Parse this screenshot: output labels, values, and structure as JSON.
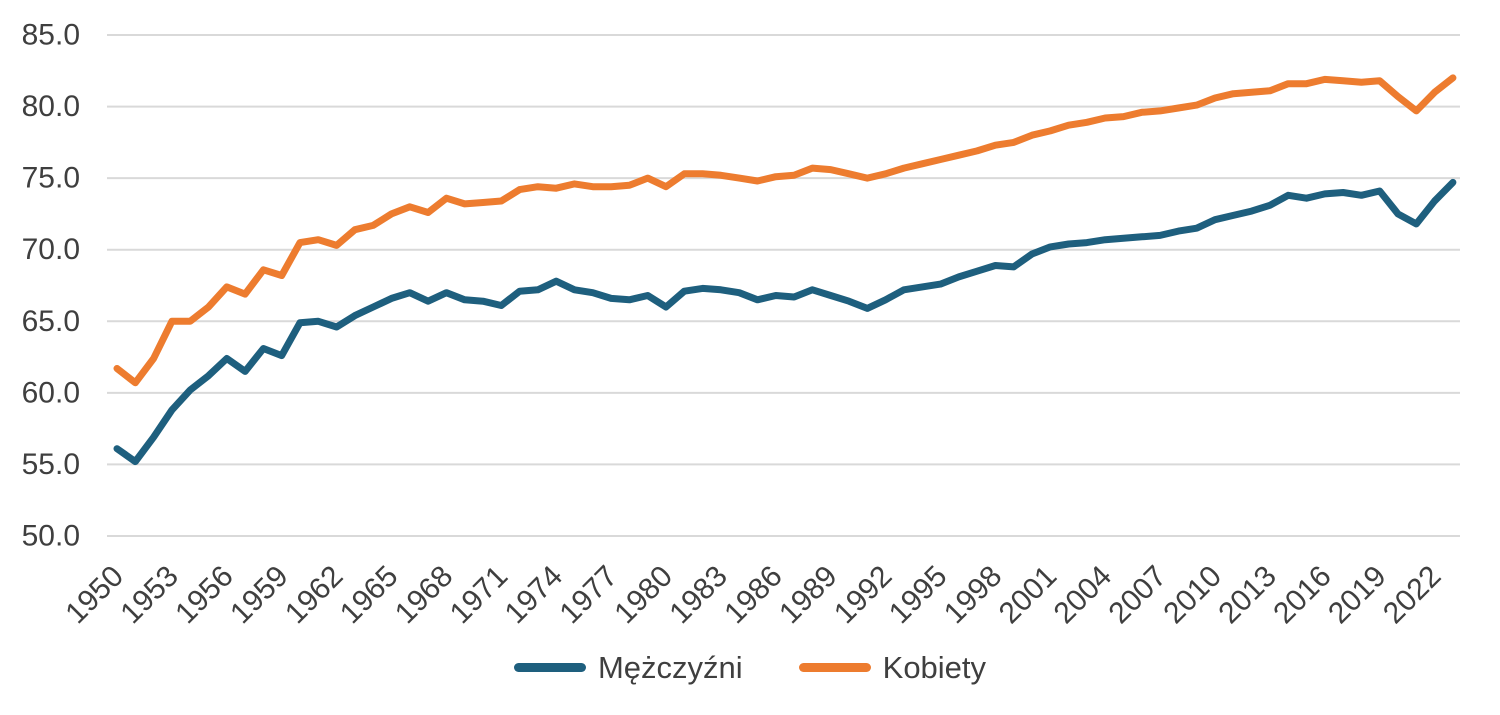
{
  "chart_data": {
    "type": "line",
    "title": "",
    "x_years": [
      1950,
      1951,
      1952,
      1953,
      1954,
      1955,
      1956,
      1957,
      1958,
      1959,
      1960,
      1961,
      1962,
      1963,
      1964,
      1965,
      1966,
      1967,
      1968,
      1969,
      1970,
      1971,
      1972,
      1973,
      1974,
      1975,
      1976,
      1977,
      1978,
      1979,
      1980,
      1981,
      1982,
      1983,
      1984,
      1985,
      1986,
      1987,
      1988,
      1989,
      1990,
      1991,
      1992,
      1993,
      1994,
      1995,
      1996,
      1997,
      1998,
      1999,
      2000,
      2001,
      2002,
      2003,
      2004,
      2005,
      2006,
      2007,
      2008,
      2009,
      2010,
      2011,
      2012,
      2013,
      2014,
      2015,
      2016,
      2017,
      2018,
      2019,
      2020,
      2021,
      2022,
      2023
    ],
    "series": [
      {
        "name": "Mężczyźni",
        "color": "#1e5f7e",
        "values": [
          56.1,
          55.2,
          56.9,
          58.8,
          60.2,
          61.2,
          62.4,
          61.5,
          63.1,
          62.6,
          64.9,
          65.0,
          64.6,
          65.4,
          66.0,
          66.6,
          67.0,
          66.4,
          67.0,
          66.5,
          66.4,
          66.1,
          67.1,
          67.2,
          67.8,
          67.2,
          67.0,
          66.6,
          66.5,
          66.8,
          66.0,
          67.1,
          67.3,
          67.2,
          67.0,
          66.5,
          66.8,
          66.7,
          67.2,
          66.8,
          66.4,
          65.9,
          66.5,
          67.2,
          67.4,
          67.6,
          68.1,
          68.5,
          68.9,
          68.8,
          69.7,
          70.2,
          70.4,
          70.5,
          70.7,
          70.8,
          70.9,
          71.0,
          71.3,
          71.5,
          72.1,
          72.4,
          72.7,
          73.1,
          73.8,
          73.6,
          73.9,
          74.0,
          73.8,
          74.1,
          72.5,
          71.8,
          73.4,
          74.7
        ]
      },
      {
        "name": "Kobiety",
        "color": "#ed7c2f",
        "values": [
          61.7,
          60.7,
          62.4,
          65.0,
          65.0,
          66.0,
          67.4,
          66.9,
          68.6,
          68.2,
          70.5,
          70.7,
          70.3,
          71.4,
          71.7,
          72.5,
          73.0,
          72.6,
          73.6,
          73.2,
          73.3,
          73.4,
          74.2,
          74.4,
          74.3,
          74.6,
          74.4,
          74.4,
          74.5,
          75.0,
          74.4,
          75.3,
          75.3,
          75.2,
          75.0,
          74.8,
          75.1,
          75.2,
          75.7,
          75.6,
          75.3,
          75.0,
          75.3,
          75.7,
          76.0,
          76.3,
          76.6,
          76.9,
          77.3,
          77.5,
          78.0,
          78.3,
          78.7,
          78.9,
          79.2,
          79.3,
          79.6,
          79.7,
          79.9,
          80.1,
          80.6,
          80.9,
          81.0,
          81.1,
          81.6,
          81.6,
          81.9,
          81.8,
          81.7,
          81.8,
          80.7,
          79.7,
          81.0,
          82.0
        ]
      }
    ],
    "ylim": [
      50.0,
      85.0
    ],
    "yticks": [
      85.0,
      80.0,
      75.0,
      70.0,
      65.0,
      60.0,
      55.0,
      50.0
    ],
    "ytick_labels": [
      "85.0",
      "80.0",
      "75.0",
      "70.0",
      "65.0",
      "60.0",
      "55.0",
      "50.0"
    ],
    "xticks": [
      1950,
      1953,
      1956,
      1959,
      1962,
      1965,
      1968,
      1971,
      1974,
      1977,
      1980,
      1983,
      1986,
      1989,
      1992,
      1995,
      1998,
      2001,
      2004,
      2007,
      2010,
      2013,
      2016,
      2019,
      2022
    ],
    "xlabel": "",
    "ylabel": "",
    "grid": "horizontal",
    "legend_position": "bottom"
  },
  "colors": {
    "men_line": "#1e5f7e",
    "women_line": "#ed7c2f",
    "gridline": "#d9d9d9",
    "axis_text": "#3f3f3f",
    "background": "#ffffff"
  },
  "legend": {
    "items": [
      {
        "label": "Mężczyźni",
        "color": "#1e5f7e"
      },
      {
        "label": "Kobiety",
        "color": "#ed7c2f"
      }
    ]
  }
}
